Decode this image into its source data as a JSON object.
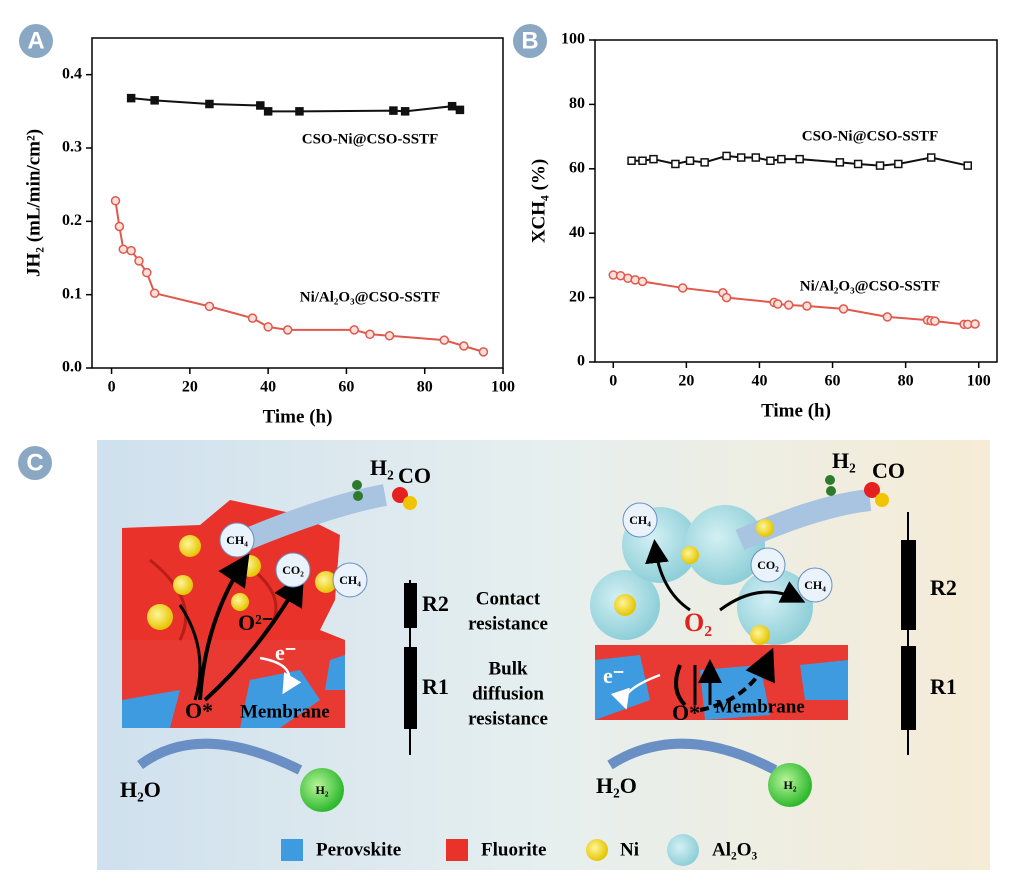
{
  "chart_data": [
    {
      "type": "line",
      "panel_label": "A",
      "x_label": "Time (h)",
      "y_label": "JH₂ (mL/min/cm²)",
      "xlim": [
        -5,
        100
      ],
      "xticks": [
        0,
        20,
        40,
        60,
        80,
        100
      ],
      "ylim": [
        0,
        0.45
      ],
      "yticks": [
        {
          "value": 0,
          "label": "0.0"
        },
        0.1,
        0.2,
        0.3,
        0.4
      ],
      "series": [
        {
          "name": "CSO-Ni@CSO-SSTF",
          "color": "#111111",
          "marker": "square",
          "x": [
            5,
            11,
            25,
            38,
            40,
            48,
            72,
            75,
            87,
            89
          ],
          "values": [
            0.368,
            0.365,
            0.36,
            0.358,
            0.35,
            0.35,
            0.351,
            0.35,
            0.357,
            0.352
          ]
        },
        {
          "name": "Ni/Al₂O₃@CSO-SSTF",
          "color": "#e0584c",
          "marker": "circle",
          "x": [
            1,
            2,
            3,
            5,
            7,
            9,
            11,
            25,
            36,
            40,
            45,
            62,
            66,
            71,
            85,
            90,
            95
          ],
          "values": [
            0.228,
            0.193,
            0.162,
            0.16,
            0.146,
            0.13,
            0.102,
            0.084,
            0.068,
            0.056,
            0.052,
            0.052,
            0.046,
            0.044,
            0.038,
            0.03,
            0.022
          ]
        }
      ]
    },
    {
      "type": "line",
      "panel_label": "B",
      "x_label": "Time (h)",
      "y_label": "XCH₄ (%)",
      "xlim": [
        -5,
        105
      ],
      "xticks": [
        0,
        20,
        40,
        60,
        80,
        100
      ],
      "ylim": [
        0,
        100
      ],
      "yticks": [
        0,
        20,
        40,
        60,
        80,
        100
      ],
      "series": [
        {
          "name": "CSO-Ni@CSO-SSTF",
          "color": "#111111",
          "marker": "open-square",
          "x": [
            5,
            8,
            11,
            17,
            21,
            25,
            31,
            35,
            39,
            43,
            46,
            51,
            62,
            67,
            73,
            78,
            87,
            97
          ],
          "values": [
            62.5,
            62.5,
            63,
            61.5,
            62.5,
            62,
            64,
            63.5,
            63.5,
            62.5,
            63,
            63,
            62,
            61.5,
            61,
            61.5,
            63.5,
            61
          ]
        },
        {
          "name": "Ni/Al₂O₃@CSO-SSTF",
          "color": "#e0584c",
          "marker": "circle",
          "x": [
            0,
            2,
            4,
            6,
            8,
            19,
            30,
            31,
            44,
            45,
            48,
            53,
            63,
            75,
            86,
            87,
            88,
            96,
            97,
            99
          ],
          "values": [
            27,
            26.8,
            26,
            25.5,
            25,
            23,
            21.5,
            20,
            18.5,
            18,
            17.7,
            17.4,
            16.5,
            14,
            13,
            12.8,
            12.7,
            11.7,
            11.7,
            11.8
          ]
        }
      ]
    }
  ],
  "diagram": {
    "panel_label": "C",
    "left": {
      "h2": "H₂",
      "co": "CO",
      "ch4_a": "CH₄",
      "co2": "CO₂",
      "ch4_b": "CH₄",
      "o_ion": "O²⁻",
      "electron": "e⁻",
      "o_star": "O*",
      "membrane": "Membrane",
      "h2o": "H₂O",
      "h2_out": "H₂",
      "r2": "R2",
      "r2_note": [
        "Contact",
        "resistance"
      ],
      "r1": "R1",
      "r1_note": [
        "Bulk",
        "diffusion",
        "resistance"
      ]
    },
    "right": {
      "h2": "H₂",
      "co": "CO",
      "ch4_a": "CH₄",
      "co2": "CO₂",
      "ch4_b": "CH₄",
      "o2": "O₂",
      "electron": "e⁻",
      "o_star": "O*",
      "membrane": "Membrane",
      "h2o": "H₂O",
      "h2_out": "H₂",
      "r2": "R2",
      "r1": "R1"
    },
    "legend": [
      "Perovskite",
      "Fluorite",
      "Ni",
      "Al₂O₃"
    ]
  }
}
